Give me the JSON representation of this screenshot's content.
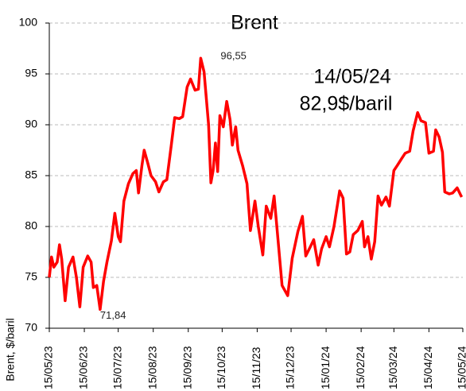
{
  "chart_data": {
    "type": "line",
    "title": "Brent",
    "ylabel": "Brent, $/baril",
    "annotations": [
      "14/05/24",
      "82,9$/baril"
    ],
    "point_labels": [
      {
        "x": "26/09/23",
        "label": "96,55"
      },
      {
        "x": "29/06/23",
        "label": "71,84"
      }
    ],
    "ylim": [
      70,
      100
    ],
    "yticks": [
      70,
      75,
      80,
      85,
      90,
      95,
      100
    ],
    "grid": true,
    "xlim": [
      "15/05/23",
      "15/05/24"
    ],
    "xticks": [
      "15/05/23",
      "15/06/23",
      "15/07/23",
      "15/08/23",
      "15/09/23",
      "15/10/23",
      "15/11/23",
      "15/12/23",
      "15/01/24",
      "15/02/24",
      "15/03/24",
      "15/04/24",
      "15/05/24"
    ],
    "series": [
      {
        "name": "Brent",
        "color": "#ff0000",
        "x": [
          "15/05/23",
          "17/05/23",
          "19/05/23",
          "22/05/23",
          "24/05/23",
          "26/05/23",
          "29/05/23",
          "01/06/23",
          "05/06/23",
          "08/06/23",
          "11/06/23",
          "14/06/23",
          "18/06/23",
          "21/06/23",
          "23/06/23",
          "26/06/23",
          "29/06/23",
          "02/07/23",
          "05/07/23",
          "09/07/23",
          "12/07/23",
          "15/07/23",
          "17/07/23",
          "20/07/23",
          "24/07/23",
          "28/07/23",
          "31/07/23",
          "02/08/23",
          "05/08/23",
          "07/08/23",
          "10/08/23",
          "13/08/23",
          "17/08/23",
          "20/08/23",
          "24/08/23",
          "27/08/23",
          "31/08/23",
          "03/09/23",
          "07/09/23",
          "10/09/23",
          "14/09/23",
          "17/09/23",
          "21/09/23",
          "24/09/23",
          "26/09/23",
          "29/09/23",
          "03/10/23",
          "05/10/23",
          "07/10/23",
          "09/10/23",
          "11/10/23",
          "13/10/23",
          "16/10/23",
          "19/10/23",
          "22/10/23",
          "24/10/23",
          "27/10/23",
          "29/10/23",
          "02/11/23",
          "06/11/23",
          "09/11/23",
          "13/11/23",
          "16/11/23",
          "20/11/23",
          "23/11/23",
          "27/11/23",
          "30/11/23",
          "04/12/23",
          "07/12/23",
          "12/12/23",
          "16/12/23",
          "21/12/23",
          "25/12/23",
          "28/12/23",
          "01/01/24",
          "04/01/24",
          "08/01/24",
          "11/01/24",
          "15/01/24",
          "18/01/24",
          "22/01/24",
          "27/01/24",
          "30/01/24",
          "02/02/24",
          "05/02/24",
          "08/02/24",
          "12/02/24",
          "16/02/24",
          "18/02/24",
          "21/02/24",
          "24/02/24",
          "27/02/24",
          "01/03/24",
          "04/03/24",
          "08/03/24",
          "11/03/24",
          "15/03/24",
          "18/03/24",
          "22/03/24",
          "25/03/24",
          "29/03/24",
          "01/04/24",
          "05/04/24",
          "08/04/24",
          "12/04/24",
          "15/04/24",
          "19/04/24",
          "21/04/24",
          "24/04/24",
          "27/04/24",
          "29/04/24",
          "03/05/24",
          "06/05/24",
          "10/05/24",
          "13/05/24",
          "14/05/24"
        ],
        "values": [
          75.0,
          77.0,
          76.0,
          76.5,
          78.2,
          76.8,
          72.7,
          76.0,
          77.0,
          75.0,
          72.1,
          76.0,
          77.1,
          76.5,
          74.0,
          74.2,
          71.84,
          74.6,
          76.5,
          78.6,
          81.3,
          79.0,
          78.5,
          82.5,
          84.2,
          85.2,
          85.5,
          83.3,
          86.0,
          87.5,
          86.3,
          85.0,
          84.4,
          83.4,
          84.4,
          84.6,
          88.0,
          90.7,
          90.6,
          90.8,
          93.7,
          94.5,
          93.4,
          93.5,
          96.55,
          95.2,
          90.0,
          84.3,
          85.5,
          88.2,
          85.4,
          90.9,
          89.8,
          92.3,
          90.5,
          88.0,
          89.8,
          87.5,
          86.0,
          84.2,
          79.6,
          82.5,
          80.0,
          77.2,
          82.0,
          80.8,
          83.0,
          78.0,
          74.2,
          73.2,
          76.9,
          79.5,
          81.0,
          77.1,
          78.0,
          78.7,
          76.2,
          77.8,
          79.0,
          78.0,
          80.0,
          83.5,
          82.8,
          77.3,
          77.5,
          79.2,
          79.6,
          80.5,
          78.0,
          79.0,
          76.8,
          78.5,
          83.0,
          82.1,
          82.9,
          82.0,
          85.5,
          86.0,
          86.7,
          87.2,
          87.4,
          89.4,
          91.2,
          90.4,
          90.2,
          87.2,
          87.4,
          89.5,
          88.8,
          87.3,
          83.4,
          83.2,
          83.3,
          83.8,
          83.1,
          82.9
        ]
      }
    ]
  }
}
